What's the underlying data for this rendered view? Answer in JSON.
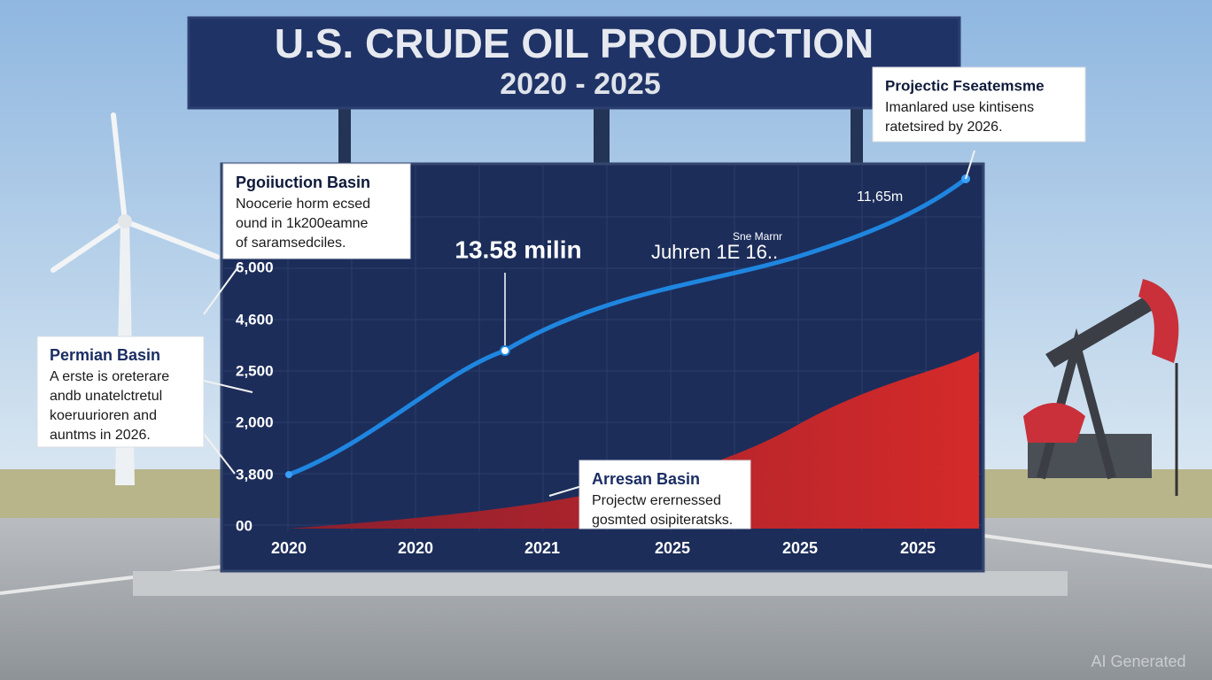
{
  "header": {
    "title": "U.S. CRUDE OIL PRODUCTION",
    "subtitle": "2020 - 2025"
  },
  "chart": {
    "y_axis_labels": [
      "6,000",
      "4,600",
      "2,500",
      "2,000",
      "3,800",
      "00"
    ],
    "x_axis_labels": [
      "2020",
      "2020",
      "2021",
      "2025",
      "2025",
      "2025"
    ],
    "annotations": [
      "13.58 milin",
      "Sne Marnr",
      "Juhren 1E 16..",
      "11,65m"
    ]
  },
  "callouts": [
    {
      "title": "Pgoiiuction Basin",
      "lines": [
        "Noocerie horm ecsed",
        "ound in 1k200eamne",
        "of saramsedciles."
      ]
    },
    {
      "title": "Permian Basin",
      "lines": [
        "A erste is oreterare",
        "andb unatelctretul",
        "koeruurioren and",
        "auntms in 2026."
      ]
    },
    {
      "title": "Projectic Fseatemsme",
      "lines": [
        "Imanlared use kintisens",
        "ratetsired by 2026."
      ]
    },
    {
      "title": "Arresan Basin",
      "lines": [
        "Projectw erernessed",
        "gosmted osipiteratsks."
      ]
    }
  ],
  "watermark": "AI Generated"
}
